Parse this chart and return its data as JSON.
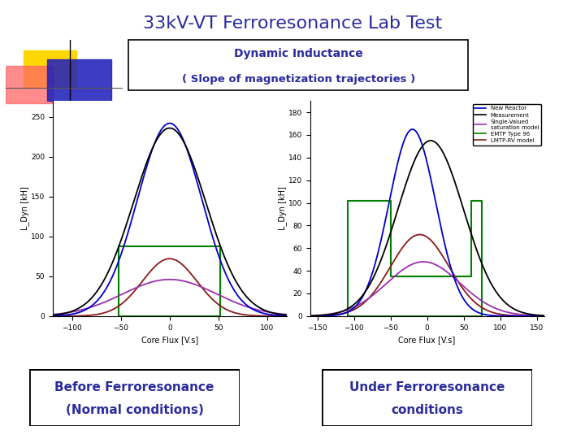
{
  "title": "33kV-VT Ferroresonance Lab Test",
  "subtitle": "Dynamic Inductance",
  "subtitle2": "( Slope of magnetization trajectories )",
  "title_color": "#2b2b9e",
  "subtitle_color": "#2b2b9e",
  "box_label1_line1": "Before Ferroresonance",
  "box_label1_line2": "(Normal conditions)",
  "box_label2_line1": "Under Ferroresonance",
  "box_label2_line2": "conditions",
  "box_label_color": "#2b2b9e",
  "ylabel": "L_Dyn [kH]",
  "xlabel": "Core Flux [V.s]",
  "legend_entries": [
    "New Reactor",
    "Measurement",
    "Single-Valued\nsaturation model",
    "EMTP Type 96",
    "LMTP-RV model"
  ],
  "legend_colors": [
    "#0000cd",
    "#000000",
    "#9b30b0",
    "#008000",
    "#8b1a1a"
  ],
  "background_color": "#ffffff",
  "title_fontsize": 16,
  "subtitle_fontsize": 10,
  "left_xlim": [
    -120,
    120
  ],
  "left_ylim": [
    0,
    270
  ],
  "right_xlim": [
    -160,
    160
  ],
  "right_ylim": [
    0,
    190
  ]
}
